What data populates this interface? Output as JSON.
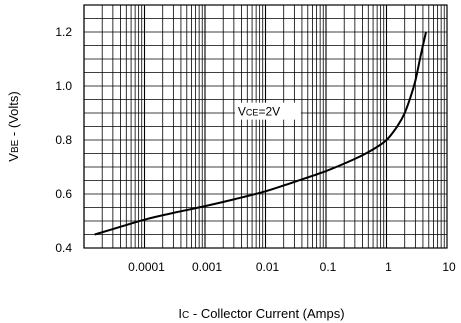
{
  "chart_data": {
    "type": "line",
    "xscale": "log",
    "xlim": [
      1e-05,
      10
    ],
    "ylim": [
      0.4,
      1.3
    ],
    "grid": true,
    "xticks": [
      {
        "value": 0.0001,
        "label": "0.0001"
      },
      {
        "value": 0.001,
        "label": "0.001"
      },
      {
        "value": 0.01,
        "label": "0.01"
      },
      {
        "value": 0.1,
        "label": "0.1"
      },
      {
        "value": 1,
        "label": "1"
      },
      {
        "value": 10,
        "label": "10"
      }
    ],
    "yticks": [
      {
        "value": 0.4,
        "label": "0.4"
      },
      {
        "value": 0.6,
        "label": "0.6"
      },
      {
        "value": 0.8,
        "label": "0.8"
      },
      {
        "value": 1.0,
        "label": "1.0"
      },
      {
        "value": 1.2,
        "label": "1.2"
      }
    ],
    "ylabel": {
      "main": "V",
      "sub": "BE",
      "rest": " - (Volts)"
    },
    "xlabel": {
      "main": "I",
      "sub": "C",
      "rest": " - Collector Current (Amps)"
    },
    "annotation": {
      "main": "V",
      "sub": "CE",
      "rest": "=2V",
      "x": 0.0035,
      "y": 0.905
    },
    "series": [
      {
        "x": [
          1.5e-05,
          3e-05,
          0.0001,
          0.0003,
          0.001,
          0.003,
          0.01,
          0.03,
          0.1,
          0.3,
          0.6,
          1,
          1.5,
          2,
          2.5,
          3,
          3.5,
          4,
          4.5
        ],
        "y": [
          0.45,
          0.47,
          0.505,
          0.53,
          0.555,
          0.58,
          0.61,
          0.645,
          0.685,
          0.73,
          0.765,
          0.8,
          0.85,
          0.9,
          0.96,
          1.02,
          1.09,
          1.15,
          1.2
        ]
      }
    ]
  }
}
